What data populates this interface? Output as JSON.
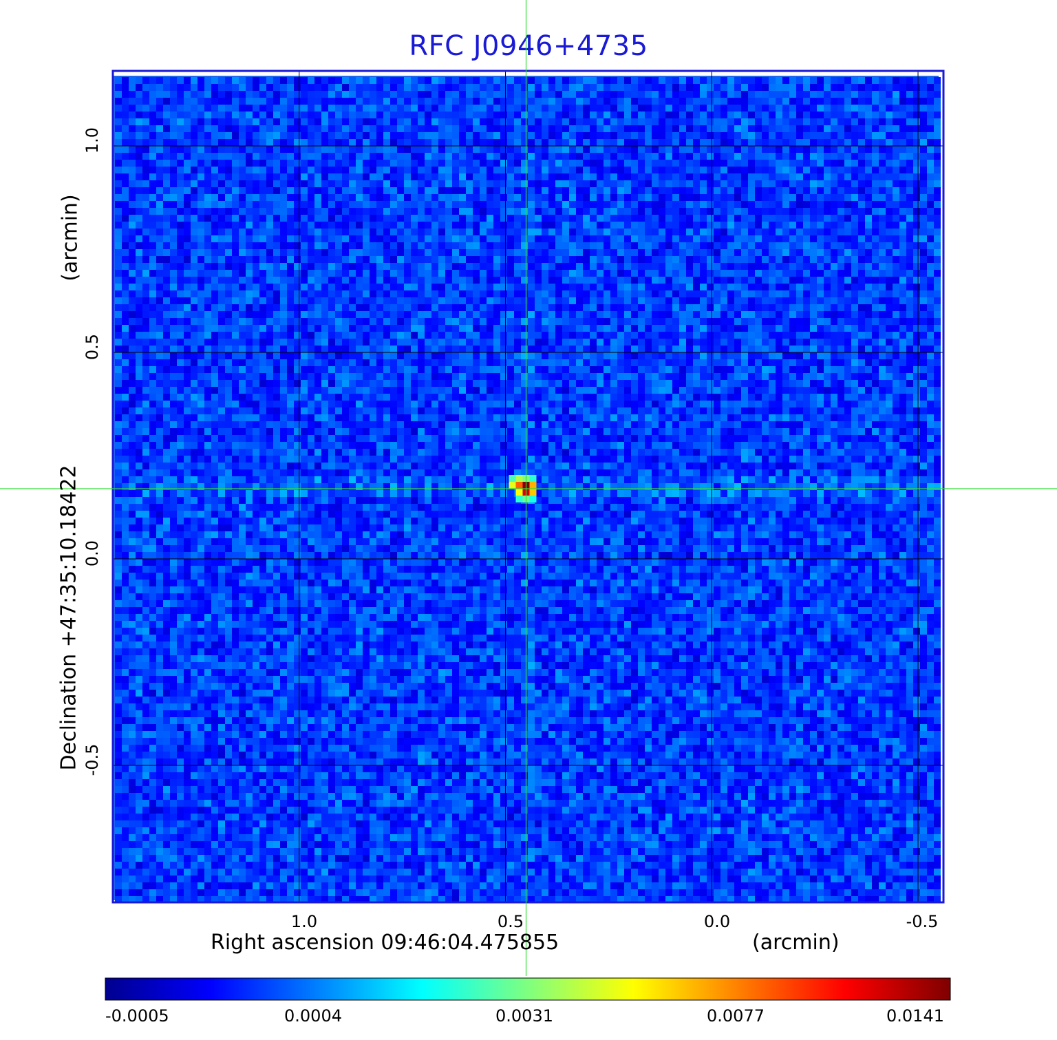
{
  "chart_data": {
    "type": "heatmap",
    "title": "RFC J0946+4735",
    "xlabel": "Right ascension  09:46:04.475855",
    "xlabel_unit": "(arcmin)",
    "ylabel": "Declination  +47:35:10.18422",
    "ylabel_unit": "(arcmin)",
    "x_ticks": [
      "1.0",
      "0.5",
      "0.0",
      "-0.5"
    ],
    "y_ticks": [
      "1.0",
      "0.5",
      "0.0",
      "-0.5"
    ],
    "xlim": [
      1.45,
      -0.56
    ],
    "ylim": [
      -0.83,
      1.18
    ],
    "grid": true,
    "crosshair": {
      "x": 0.45,
      "y": 0.17,
      "color": "#33dd33"
    },
    "colorbar": {
      "ticks": [
        "-0.0005",
        "0.0004",
        "0.0031",
        "0.0077",
        "0.0141"
      ],
      "min": -0.0005,
      "max": 0.0141,
      "colors": [
        "#00008f",
        "#0000ff",
        "#007fff",
        "#00ffff",
        "#7fff7f",
        "#ffff00",
        "#ff7f00",
        "#ff0000",
        "#7f0000"
      ]
    },
    "source": {
      "description": "compact bright peak",
      "peak_value": 0.0141,
      "background_level": 0.0002
    }
  },
  "colors": {
    "title": "#1a1ad6",
    "frame": "#1a1ad6",
    "background_field": "#1f66f0",
    "grid": "#000000"
  }
}
